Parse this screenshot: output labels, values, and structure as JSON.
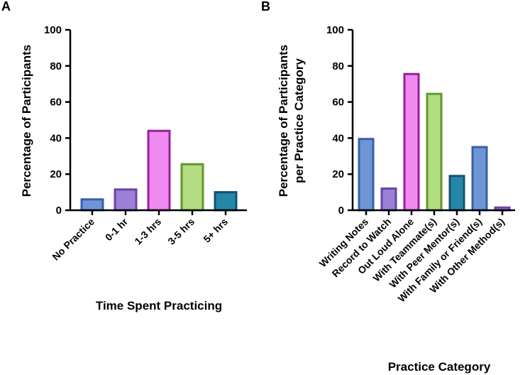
{
  "chart_data": [
    {
      "panel": "A",
      "type": "bar",
      "title": "",
      "xlabel": "Time  Spent  Practicing",
      "ylabel": "Percentage of Participants",
      "ylim": [
        0,
        100
      ],
      "yticks": [
        "0",
        "20",
        "40",
        "60",
        "80",
        "100"
      ],
      "ytick_values": [
        0,
        20,
        40,
        60,
        80,
        100
      ],
      "categories": [
        "No Practice",
        "0-1 hr",
        "1-3 hrs",
        "3-5 hrs",
        "5+ hrs"
      ],
      "values": [
        6,
        11.5,
        44,
        25.5,
        10
      ],
      "fills": [
        "#6e96d6",
        "#9b80d6",
        "#ef8bf0",
        "#b4dc80",
        "#2486a8"
      ],
      "strokes": [
        "#3a5fa8",
        "#6a44a8",
        "#9a1f9c",
        "#5c9a2c",
        "#17506e"
      ]
    },
    {
      "panel": "B",
      "type": "bar",
      "title": "",
      "xlabel": "Practice  Category",
      "ylabel": "Percentage of Participants per Practice Category",
      "ylabel_lines": [
        "Percentage of Participants",
        "per Practice Category"
      ],
      "ylim": [
        0,
        100
      ],
      "yticks": [
        "0",
        "20",
        "40",
        "60",
        "80",
        "100"
      ],
      "ytick_values": [
        0,
        20,
        40,
        60,
        80,
        100
      ],
      "categories": [
        "Writing Notes",
        "Record to Watch",
        "Out Loud Alone",
        "With Teammate(s)",
        "With Peer Mentor(s)",
        "With Family or Friend(s)",
        "With Other Method(s)"
      ],
      "values": [
        39.5,
        12,
        75.5,
        64.5,
        19,
        35,
        1.5
      ],
      "fills": [
        "#6e96d6",
        "#9b80d6",
        "#ef8bf0",
        "#b4dc80",
        "#2486a8",
        "#6e96d6",
        "#9b80d6"
      ],
      "strokes": [
        "#3a5fa8",
        "#6a44a8",
        "#9a1f9c",
        "#5c9a2c",
        "#17506e",
        "#3a5fa8",
        "#6a44a8"
      ]
    }
  ]
}
